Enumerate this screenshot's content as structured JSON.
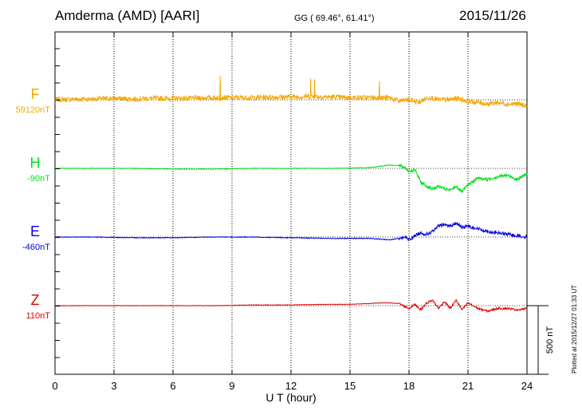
{
  "header": {
    "title": "Amderma (AMD)  [AARI]",
    "coords": "GG ( 69.46°,  61.41°)",
    "date": "2015/11/26"
  },
  "footer": {
    "plotted": "Plotted at 2015/12/27 01:33 UT"
  },
  "chart_data": {
    "type": "line",
    "xlabel": "U T (hour)",
    "xlim": [
      0,
      24
    ],
    "xticks": [
      "0",
      "3",
      "6",
      "9",
      "12",
      "15",
      "18",
      "21",
      "24"
    ],
    "scale_bar": {
      "label": "500 nT",
      "value_nT": 500
    },
    "grid": "dotted vertical lines every 3 hours; dotted baseline per component",
    "series": [
      {
        "name": "F",
        "baseline": "59120nT",
        "color": "#F5A800",
        "x": [
          0,
          1,
          2,
          3,
          4,
          5,
          6,
          7,
          8,
          9,
          10,
          11,
          12,
          13,
          14,
          15,
          16,
          17,
          17.5,
          18,
          18.5,
          19,
          19.5,
          20,
          20.5,
          21,
          21.5,
          22,
          22.5,
          23,
          23.5,
          24
        ],
        "y": [
          0,
          5,
          5,
          10,
          5,
          10,
          10,
          10,
          15,
          15,
          15,
          20,
          20,
          25,
          20,
          15,
          15,
          15,
          -10,
          0,
          -20,
          20,
          0,
          0,
          10,
          -10,
          -20,
          -30,
          -20,
          -30,
          -30,
          -45
        ],
        "spikes": [
          [
            8.4,
            175
          ],
          [
            13.0,
            155
          ],
          [
            13.2,
            150
          ],
          [
            16.5,
            135
          ]
        ]
      },
      {
        "name": "H",
        "baseline": "-90nT",
        "color": "#00E020",
        "x": [
          0,
          2,
          4,
          6,
          8,
          10,
          12,
          14,
          16,
          16.5,
          17,
          17.5,
          17.8,
          18,
          18.3,
          18.6,
          18.9,
          19.2,
          19.5,
          19.8,
          20.1,
          20.4,
          20.7,
          21,
          21.5,
          22,
          22.5,
          23,
          23.5,
          24
        ],
        "y": [
          0,
          0,
          0,
          -5,
          -5,
          0,
          0,
          0,
          5,
          15,
          25,
          20,
          5,
          -20,
          -10,
          -100,
          -130,
          -150,
          -130,
          -150,
          -160,
          -130,
          -170,
          -120,
          -70,
          -80,
          -60,
          -50,
          -80,
          -40
        ]
      },
      {
        "name": "E",
        "baseline": "-460nT",
        "color": "#0000E0",
        "x": [
          0,
          2,
          4,
          6,
          8,
          10,
          12,
          14,
          16,
          17,
          17.5,
          17.8,
          18,
          18.3,
          18.6,
          18.9,
          19.2,
          19.5,
          19.8,
          20.1,
          20.4,
          20.7,
          21,
          21.5,
          22,
          22.5,
          23,
          23.5,
          24
        ],
        "y": [
          0,
          0,
          -5,
          -5,
          0,
          0,
          -5,
          -10,
          -10,
          -20,
          -10,
          0,
          -20,
          10,
          30,
          20,
          40,
          80,
          90,
          80,
          100,
          70,
          80,
          60,
          40,
          30,
          20,
          10,
          0
        ]
      },
      {
        "name": "Z",
        "baseline": "110nT",
        "color": "#E00000",
        "x": [
          0,
          2,
          4,
          6,
          8,
          10,
          12,
          14,
          15,
          16,
          16.5,
          17,
          17.5,
          18,
          18.3,
          18.6,
          18.9,
          19.2,
          19.5,
          19.8,
          20.1,
          20.4,
          20.7,
          21,
          21.5,
          22,
          22.5,
          23,
          23.5,
          24
        ],
        "y": [
          0,
          0,
          0,
          0,
          0,
          5,
          5,
          10,
          10,
          15,
          20,
          20,
          15,
          -20,
          10,
          -30,
          20,
          40,
          -20,
          30,
          -20,
          40,
          -30,
          20,
          -20,
          -40,
          -20,
          -20,
          -30,
          -20
        ]
      }
    ]
  }
}
